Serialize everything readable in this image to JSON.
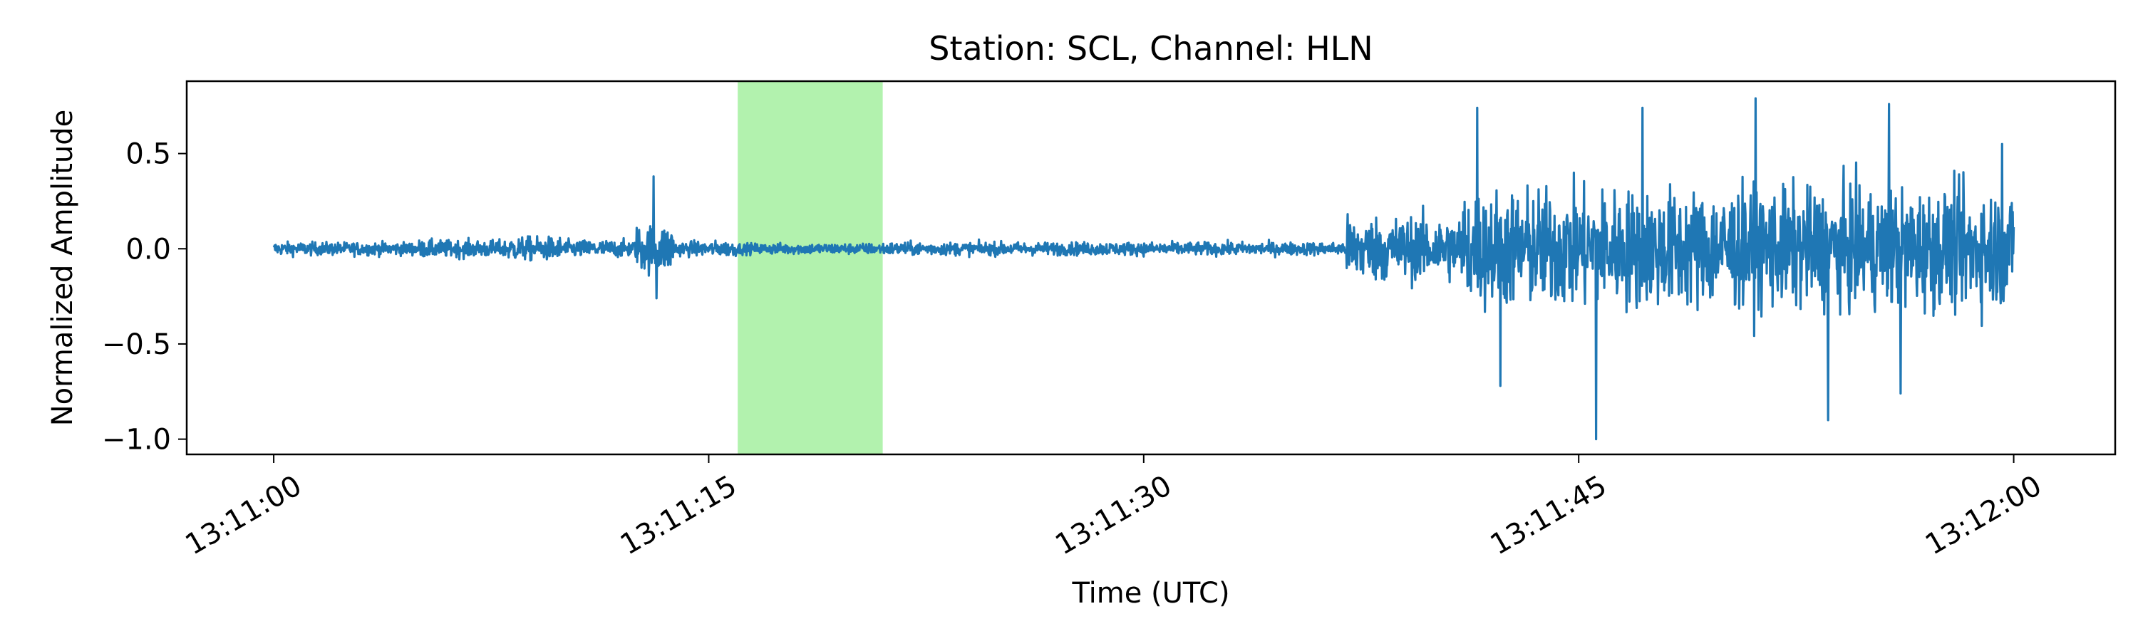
{
  "chart_data": {
    "type": "line",
    "title": "Station: SCL, Channel: HLN",
    "xlabel": "Time (UTC)",
    "ylabel": "Normalized Amplitude",
    "xlim_seconds": [
      -3,
      63.5
    ],
    "ylim": [
      -1.08,
      0.88
    ],
    "x_ticks": [
      {
        "t": 0,
        "label": "13:11:00"
      },
      {
        "t": 15,
        "label": "13:11:15"
      },
      {
        "t": 30,
        "label": "13:11:30"
      },
      {
        "t": 45,
        "label": "13:11:45"
      },
      {
        "t": 60,
        "label": "13:12:00"
      }
    ],
    "y_ticks": [
      {
        "v": 0.5,
        "label": "0.5"
      },
      {
        "v": 0.0,
        "label": "0.0"
      },
      {
        "v": -0.5,
        "label": "−0.5"
      },
      {
        "v": -1.0,
        "label": "−1.0"
      }
    ],
    "highlight": {
      "start": 16.0,
      "end": 21.0,
      "color": "#b2f2ae"
    },
    "series": [
      {
        "color": "#1f77b4",
        "segments": [
          {
            "start": 0,
            "end": 5,
            "amp": 0.06
          },
          {
            "start": 5,
            "end": 8,
            "amp": 0.08
          },
          {
            "start": 8,
            "end": 10,
            "amp": 0.11
          },
          {
            "start": 10,
            "end": 12.5,
            "amp": 0.08
          },
          {
            "start": 12.5,
            "end": 13.8,
            "amp": 0.22
          },
          {
            "start": 13.8,
            "end": 16,
            "amp": 0.07
          },
          {
            "start": 16,
            "end": 21,
            "amp": 0.05
          },
          {
            "start": 21,
            "end": 37,
            "amp": 0.06
          },
          {
            "start": 37,
            "end": 41,
            "amp": 0.3
          },
          {
            "start": 41,
            "end": 60,
            "amp": 0.55
          }
        ],
        "peaks": [
          {
            "t": 13.1,
            "v": 0.38
          },
          {
            "t": 13.2,
            "v": -0.26
          },
          {
            "t": 41.5,
            "v": 0.74
          },
          {
            "t": 42.3,
            "v": -0.72
          },
          {
            "t": 45.6,
            "v": -1.0
          },
          {
            "t": 47.2,
            "v": 0.74
          },
          {
            "t": 51.1,
            "v": 0.79
          },
          {
            "t": 53.6,
            "v": -0.9
          },
          {
            "t": 55.7,
            "v": 0.76
          },
          {
            "t": 56.1,
            "v": -0.76
          },
          {
            "t": 59.6,
            "v": 0.55
          }
        ]
      }
    ]
  }
}
